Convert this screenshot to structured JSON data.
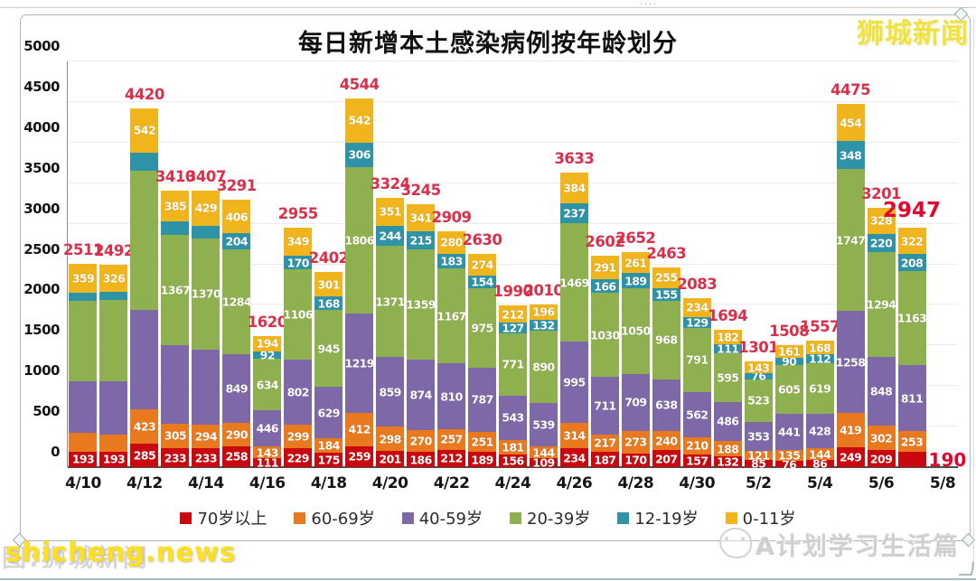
{
  "page": {
    "title": "每日新增本土感染病例按年龄划分",
    "logo_top_right": "狮城新闻",
    "watermark_bottom_left": "shicheng.news",
    "watermark_bottom_left_bg": "图:狮城新闻",
    "watermark_bottom_right": "A计划学习生活篇",
    "top_handle_dots": "····"
  },
  "chart_data": {
    "type": "bar",
    "stacked": true,
    "title": "每日新增本土感染病例按年龄划分",
    "xlabel": "",
    "ylabel": "",
    "ylim": [
      0,
      5000
    ],
    "ytick_step": 500,
    "grid": "horizontal",
    "legend_position": "bottom",
    "x_tick_labels": [
      "4/10",
      "4/12",
      "4/14",
      "4/16",
      "4/18",
      "4/20",
      "4/22",
      "4/24",
      "4/26",
      "4/28",
      "4/30",
      "5/2",
      "5/4",
      "5/6",
      "5/8"
    ],
    "series_names": [
      "70岁以上",
      "60-69岁",
      "40-59岁",
      "20-39岁",
      "12-19岁",
      "0-11岁"
    ],
    "series_colors": [
      "#c9090f",
      "#e8791f",
      "#7e68a8",
      "#8fb04f",
      "#2f93a8",
      "#f0b41c"
    ],
    "total_label_color": "#d8304a",
    "note": "values order per bar = [70岁以上, 60-69岁, 40-59岁, 20-39岁, 12-19岁, 0-11岁]; show=1 means the value label is printed on the segment; unlabeled segment values are estimated from bar heights",
    "bars": [
      {
        "date": "4/10",
        "total": 2511,
        "values": [
          193,
          225,
          640,
          989,
          105,
          359
        ],
        "show": [
          1,
          0,
          0,
          0,
          0,
          1
        ]
      },
      {
        "date": "4/11",
        "total": 2492,
        "values": [
          193,
          210,
          650,
          1008,
          105,
          326
        ],
        "show": [
          1,
          0,
          0,
          0,
          0,
          1
        ]
      },
      {
        "date": "4/12",
        "total": 4420,
        "values": [
          285,
          423,
          1235,
          1710,
          225,
          542
        ],
        "show": [
          1,
          1,
          0,
          0,
          0,
          1
        ]
      },
      {
        "date": "4/13",
        "total": 3410,
        "values": [
          233,
          305,
          962,
          1367,
          158,
          385
        ],
        "show": [
          1,
          1,
          0,
          1,
          0,
          1
        ]
      },
      {
        "date": "4/14",
        "total": 3407,
        "values": [
          233,
          294,
          926,
          1370,
          155,
          429
        ],
        "show": [
          1,
          1,
          0,
          1,
          0,
          1
        ]
      },
      {
        "date": "4/15",
        "total": 3291,
        "values": [
          258,
          290,
          849,
          1284,
          204,
          406
        ],
        "show": [
          1,
          1,
          1,
          1,
          1,
          1
        ]
      },
      {
        "date": "4/16",
        "total": 1620,
        "values": [
          111,
          143,
          446,
          634,
          92,
          194
        ],
        "show": [
          1,
          1,
          1,
          1,
          1,
          1
        ]
      },
      {
        "date": "4/17",
        "total": 2955,
        "values": [
          229,
          299,
          802,
          1106,
          170,
          349
        ],
        "show": [
          1,
          1,
          1,
          1,
          1,
          1
        ]
      },
      {
        "date": "4/18",
        "total": 2402,
        "values": [
          175,
          184,
          629,
          945,
          168,
          301
        ],
        "show": [
          1,
          1,
          1,
          1,
          1,
          1
        ]
      },
      {
        "date": "4/19",
        "total": 4544,
        "values": [
          259,
          412,
          1219,
          1806,
          306,
          542
        ],
        "show": [
          1,
          1,
          1,
          1,
          1,
          1
        ]
      },
      {
        "date": "4/20",
        "total": 3324,
        "values": [
          201,
          298,
          859,
          1371,
          244,
          351
        ],
        "show": [
          1,
          1,
          1,
          1,
          1,
          1
        ]
      },
      {
        "date": "4/21",
        "total": 3245,
        "values": [
          186,
          270,
          874,
          1359,
          215,
          341
        ],
        "show": [
          1,
          1,
          1,
          1,
          1,
          1
        ]
      },
      {
        "date": "4/22",
        "total": 2909,
        "values": [
          212,
          257,
          810,
          1167,
          183,
          280
        ],
        "show": [
          1,
          1,
          1,
          1,
          1,
          1
        ]
      },
      {
        "date": "4/23",
        "total": 2630,
        "values": [
          189,
          251,
          787,
          975,
          154,
          274
        ],
        "show": [
          1,
          1,
          1,
          1,
          1,
          1
        ]
      },
      {
        "date": "4/24",
        "total": 1990,
        "values": [
          156,
          181,
          543,
          771,
          127,
          212
        ],
        "show": [
          1,
          1,
          1,
          1,
          1,
          1
        ]
      },
      {
        "date": "4/25",
        "total": 2010,
        "values": [
          109,
          144,
          539,
          890,
          132,
          196
        ],
        "show": [
          1,
          1,
          1,
          1,
          1,
          1
        ]
      },
      {
        "date": "4/26",
        "total": 3633,
        "values": [
          234,
          314,
          995,
          1469,
          237,
          384
        ],
        "show": [
          1,
          1,
          1,
          1,
          1,
          1
        ]
      },
      {
        "date": "4/27",
        "total": 2602,
        "values": [
          187,
          217,
          711,
          1030,
          166,
          291
        ],
        "show": [
          1,
          1,
          1,
          1,
          1,
          1
        ]
      },
      {
        "date": "4/28",
        "total": 2652,
        "values": [
          170,
          273,
          709,
          1050,
          189,
          261
        ],
        "show": [
          1,
          1,
          1,
          1,
          1,
          1
        ]
      },
      {
        "date": "4/29",
        "total": 2463,
        "values": [
          207,
          240,
          638,
          968,
          155,
          255
        ],
        "show": [
          1,
          1,
          1,
          1,
          1,
          1
        ]
      },
      {
        "date": "4/30",
        "total": 2083,
        "values": [
          157,
          210,
          562,
          791,
          129,
          234
        ],
        "show": [
          1,
          1,
          1,
          1,
          1,
          1
        ]
      },
      {
        "date": "5/1",
        "total": 1694,
        "values": [
          132,
          188,
          486,
          595,
          111,
          182
        ],
        "show": [
          1,
          1,
          1,
          1,
          1,
          1
        ]
      },
      {
        "date": "5/2",
        "total": 1301,
        "values": [
          85,
          121,
          353,
          523,
          76,
          143
        ],
        "show": [
          1,
          1,
          1,
          1,
          1,
          1
        ]
      },
      {
        "date": "5/3",
        "total": 1508,
        "values": [
          76,
          135,
          441,
          605,
          90,
          161
        ],
        "show": [
          1,
          1,
          1,
          1,
          1,
          1
        ]
      },
      {
        "date": "5/4",
        "total": 1557,
        "values": [
          86,
          144,
          428,
          619,
          112,
          168
        ],
        "show": [
          1,
          1,
          1,
          1,
          1,
          1
        ]
      },
      {
        "date": "5/5",
        "total": 4475,
        "values": [
          249,
          419,
          1258,
          1747,
          348,
          454
        ],
        "show": [
          1,
          1,
          1,
          1,
          1,
          1
        ]
      },
      {
        "date": "5/6",
        "total": 3201,
        "values": [
          209,
          302,
          848,
          1294,
          220,
          328
        ],
        "show": [
          1,
          1,
          1,
          1,
          1,
          1
        ]
      },
      {
        "date": "5/7",
        "total": 2947,
        "values": [
          190,
          253,
          811,
          1163,
          208,
          322
        ],
        "show": [
          0,
          1,
          1,
          1,
          1,
          1
        ],
        "emphasis": true,
        "outside_label": "190"
      }
    ]
  }
}
